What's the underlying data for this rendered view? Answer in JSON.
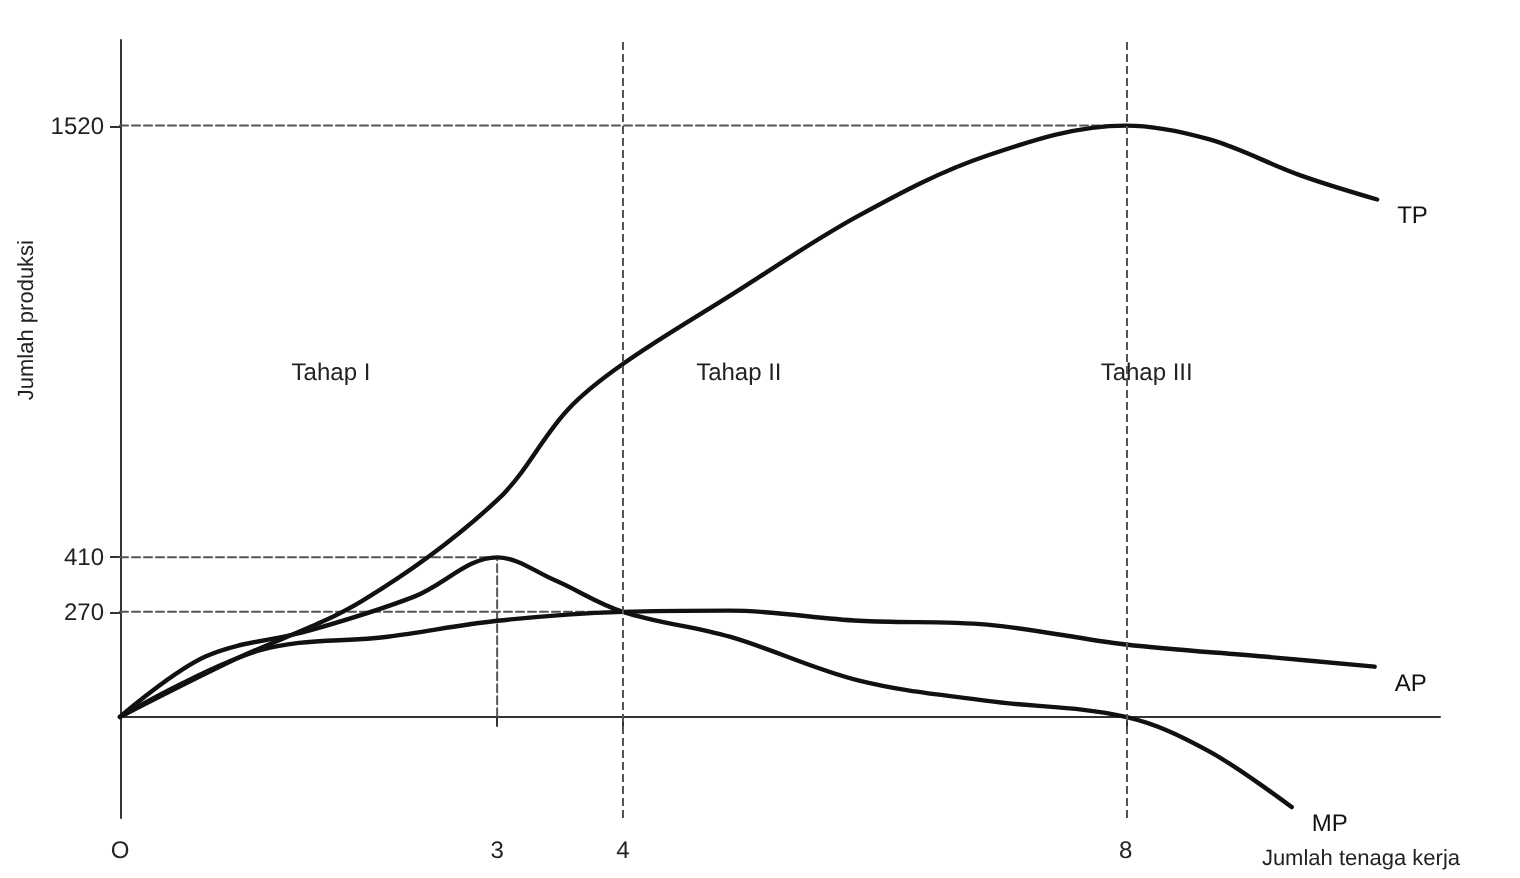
{
  "chart_data": {
    "type": "line",
    "xlabel": "Jumlah tenaga kerja",
    "ylabel": "Jumlah produksi",
    "xlim": [
      0,
      10.5
    ],
    "xticks": [
      {
        "value": 0,
        "label": "O"
      },
      3,
      4,
      8
    ],
    "ylim": [
      -260,
      1740
    ],
    "yticks": [
      270,
      410,
      1520
    ],
    "grid": false,
    "legend": false,
    "marker": "none",
    "series": [
      {
        "name": "TP",
        "color": "#111111",
        "x": [
          0,
          0.89,
          1.93,
          3,
          3.56,
          4,
          4.85,
          5.88,
          6.9,
          8,
          8.66,
          9.39,
          10
        ],
        "values": [
          0,
          144,
          299,
          557,
          789,
          907,
          1082,
          1289,
          1443,
          1520,
          1485,
          1392,
          1330
        ]
      },
      {
        "name": "AP",
        "color": "#111111",
        "x": [
          0,
          1.1,
          2.13,
          3,
          4,
          4.85,
          5.88,
          6.9,
          8,
          9.1,
          9.98
        ],
        "values": [
          0,
          170,
          206,
          247,
          270,
          273,
          247,
          237,
          186,
          155,
          129
        ]
      },
      {
        "name": "MP",
        "color": "#111111",
        "x": [
          0,
          0.68,
          1.51,
          2.34,
          3,
          3.46,
          4,
          4.85,
          5.88,
          6.9,
          8,
          8.66,
          9.32
        ],
        "values": [
          0,
          155,
          222,
          309,
          410,
          351,
          270,
          206,
          93,
          41,
          0,
          -88,
          -232
        ]
      },
      {
        "type": "line",
        "line_style": "dashed",
        "color": "#555555",
        "x": [
          0,
          3,
          3
        ],
        "values": [
          410,
          410,
          0
        ]
      },
      {
        "type": "line",
        "line_style": "dashed",
        "color": "#555555",
        "x": [
          0,
          4
        ],
        "values": [
          270,
          270
        ]
      },
      {
        "type": "line",
        "line_style": "dashed",
        "color": "#555555",
        "x": [
          0,
          8
        ],
        "values": [
          1520,
          1520
        ]
      }
    ],
    "ref_lines": [
      {
        "axis": "x",
        "value": 4,
        "line_style": "dashed",
        "color": "#555555"
      },
      {
        "axis": "x",
        "value": 8,
        "line_style": "dashed",
        "color": "#555555"
      }
    ],
    "annotations": [
      "Tahap I",
      "Tahap II",
      "Tahap III"
    ]
  }
}
